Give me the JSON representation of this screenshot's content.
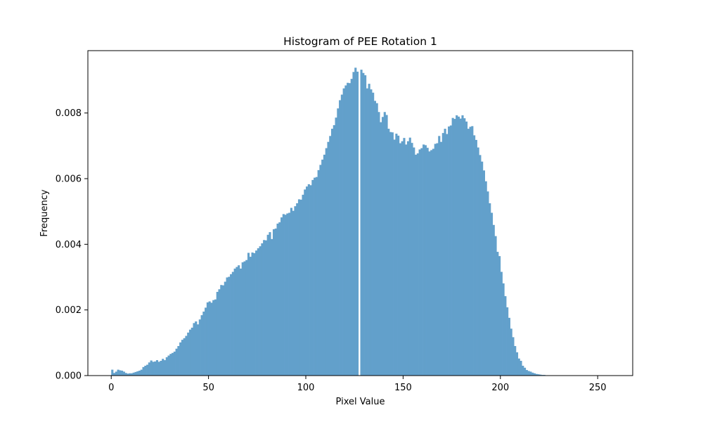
{
  "chart_data": {
    "type": "bar",
    "title": "Histogram of PEE Rotation 1",
    "xlabel": "Pixel Value",
    "ylabel": "Frequency",
    "bar_color": "#62a0cb",
    "x_range": [
      -12,
      268
    ],
    "xlim": [
      -12,
      268
    ],
    "ylim": [
      0,
      0.0099
    ],
    "grid": false,
    "legend": "none",
    "x_ticks": [
      {
        "value": 0,
        "label": "0"
      },
      {
        "value": 50,
        "label": "50"
      },
      {
        "value": 100,
        "label": "100"
      },
      {
        "value": 150,
        "label": "150"
      },
      {
        "value": 200,
        "label": "200"
      },
      {
        "value": 250,
        "label": "250"
      }
    ],
    "y_ticks": [
      {
        "value": 0,
        "label": "0.000"
      },
      {
        "value": 0.002,
        "label": "0.002"
      },
      {
        "value": 0.004,
        "label": "0.004"
      },
      {
        "value": 0.006,
        "label": "0.006"
      },
      {
        "value": 0.008,
        "label": "0.008"
      }
    ],
    "bins_start": 0,
    "bin_width": 1,
    "values": [
      0.00018,
      8e-05,
      0.00012,
      0.00018,
      0.00016,
      0.00015,
      0.00012,
      8e-05,
      6e-05,
      7e-05,
      7e-05,
      9e-05,
      0.00011,
      0.00013,
      0.00015,
      0.00018,
      0.00026,
      0.0003,
      0.00033,
      0.0004,
      0.00046,
      0.00042,
      0.00043,
      0.00047,
      0.00042,
      0.00045,
      0.00051,
      0.00047,
      0.00056,
      0.00061,
      0.00066,
      0.00069,
      0.00073,
      0.00082,
      0.0009,
      0.00101,
      0.00109,
      0.00114,
      0.00121,
      0.00131,
      0.0014,
      0.00146,
      0.0016,
      0.00165,
      0.00156,
      0.00171,
      0.00184,
      0.00195,
      0.00207,
      0.00223,
      0.00226,
      0.00222,
      0.0023,
      0.00232,
      0.00255,
      0.00263,
      0.00276,
      0.00275,
      0.00286,
      0.00299,
      0.00301,
      0.00309,
      0.00316,
      0.00326,
      0.00331,
      0.00336,
      0.00326,
      0.00345,
      0.00348,
      0.00352,
      0.00374,
      0.00362,
      0.00375,
      0.00373,
      0.00381,
      0.00388,
      0.00394,
      0.00403,
      0.00413,
      0.00412,
      0.00429,
      0.00437,
      0.00416,
      0.00446,
      0.00448,
      0.00463,
      0.00467,
      0.00482,
      0.00492,
      0.0049,
      0.00494,
      0.00496,
      0.00511,
      0.00502,
      0.00516,
      0.00525,
      0.00537,
      0.00536,
      0.00551,
      0.00567,
      0.00576,
      0.00583,
      0.0058,
      0.00596,
      0.00603,
      0.00605,
      0.00626,
      0.00642,
      0.00658,
      0.00673,
      0.00693,
      0.00712,
      0.0073,
      0.00752,
      0.00763,
      0.00786,
      0.00814,
      0.00839,
      0.00856,
      0.00875,
      0.00884,
      0.00892,
      0.00891,
      0.00904,
      0.00925,
      0.00938,
      0.00926,
      0.00912,
      0.00932,
      0.00922,
      0.00915,
      0.00875,
      0.00889,
      0.00872,
      0.00862,
      0.00837,
      0.0083,
      0.00803,
      0.00772,
      0.00788,
      0.00803,
      0.00794,
      0.00752,
      0.00742,
      0.00741,
      0.00719,
      0.00737,
      0.00731,
      0.00708,
      0.00714,
      0.00724,
      0.00704,
      0.00714,
      0.00725,
      0.00709,
      0.00695,
      0.00673,
      0.00677,
      0.00689,
      0.00693,
      0.00704,
      0.00702,
      0.00694,
      0.00683,
      0.00687,
      0.00691,
      0.00706,
      0.00708,
      0.0073,
      0.00712,
      0.00739,
      0.00752,
      0.00736,
      0.00759,
      0.00762,
      0.00785,
      0.00782,
      0.00793,
      0.00789,
      0.00783,
      0.00793,
      0.00784,
      0.00774,
      0.00752,
      0.00758,
      0.0076,
      0.00732,
      0.00718,
      0.00695,
      0.00672,
      0.00652,
      0.00625,
      0.00592,
      0.00561,
      0.00525,
      0.00496,
      0.00459,
      0.00425,
      0.00377,
      0.00364,
      0.00316,
      0.00281,
      0.00242,
      0.00208,
      0.00176,
      0.00143,
      0.00117,
      0.0009,
      0.00071,
      0.00052,
      0.00045,
      0.0003,
      0.00024,
      0.00017,
      0.00014,
      0.00012,
      9e-05,
      7e-05,
      5e-05,
      4e-05,
      3e-05,
      2e-05,
      2e-05,
      1e-05,
      1e-05,
      1e-05,
      1e-05,
      5e-06,
      5e-06,
      5e-06,
      3e-06,
      3e-06,
      3e-06,
      2e-06,
      2e-06,
      2e-06,
      1e-06,
      1e-06,
      1e-06,
      1e-06,
      1e-06,
      1e-06,
      1e-06,
      1e-06,
      1e-06,
      1e-06,
      1e-06,
      1e-06,
      1e-06,
      1e-06,
      1e-06,
      1e-06,
      1e-06,
      1e-06,
      1e-06,
      1e-06
    ],
    "gap_bin": 127
  }
}
